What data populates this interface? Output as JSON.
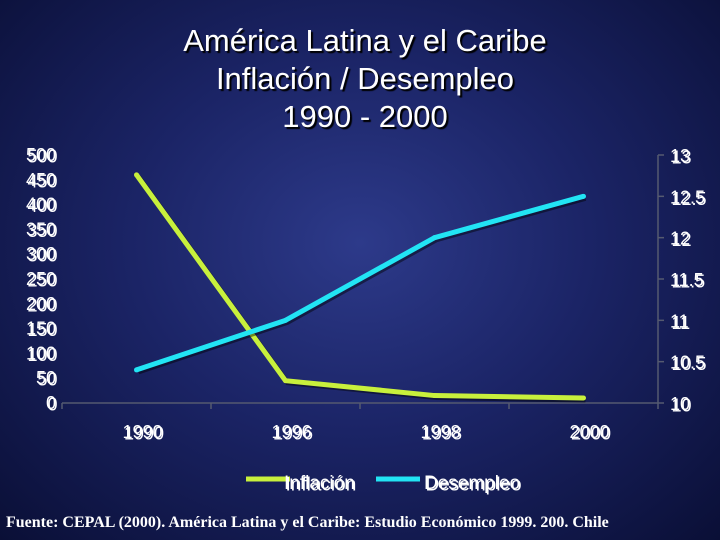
{
  "chart_data": {
    "type": "line",
    "title": [
      "América Latina y el Caribe",
      "Inflación / Desempleo",
      "1990 - 2000"
    ],
    "categories": [
      "1990",
      "1996",
      "1998",
      "2000"
    ],
    "y_left": {
      "min": 0,
      "max": 500,
      "ticks": [
        "500",
        "450",
        "400",
        "350",
        "300",
        "250",
        "200",
        "150",
        "100",
        "50",
        "0"
      ]
    },
    "y_right": {
      "min": 10,
      "max": 13,
      "ticks": [
        "13",
        "12.5",
        "12",
        "11.5",
        "11",
        "10.5",
        "10"
      ]
    },
    "series": [
      {
        "name": "Inflación",
        "axis": "left",
        "color": "#c8f03c",
        "values": [
          460,
          45,
          15,
          10
        ]
      },
      {
        "name": "Desempleo",
        "axis": "right",
        "color": "#22e4f4",
        "values": [
          10.4,
          11.0,
          12.0,
          12.5
        ]
      }
    ],
    "legend": "bottom",
    "grid": false
  },
  "footer": "Fuente: CEPAL (2000). América Latina y el Caribe: Estudio Económico 1999. 200. Chile"
}
